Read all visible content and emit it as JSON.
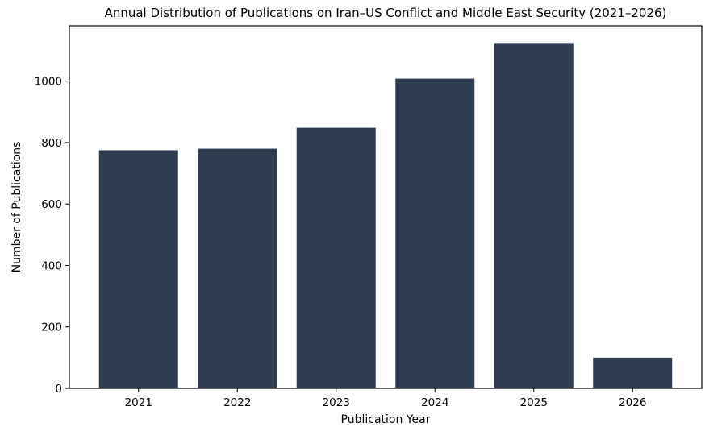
{
  "chart_data": {
    "type": "bar",
    "title": "Annual Distribution of Publications on Iran–US Conflict and Middle East Security (2021–2026)",
    "xlabel": "Publication Year",
    "ylabel": "Number of Publications",
    "categories": [
      "2021",
      "2022",
      "2023",
      "2024",
      "2025",
      "2026"
    ],
    "values": [
      775,
      780,
      848,
      1008,
      1124,
      100
    ],
    "ylim": [
      0,
      1180
    ],
    "yticks": [
      0,
      200,
      400,
      600,
      800,
      1000
    ],
    "grid": false,
    "legend": "none",
    "bar_color": "#2e3d4f"
  }
}
